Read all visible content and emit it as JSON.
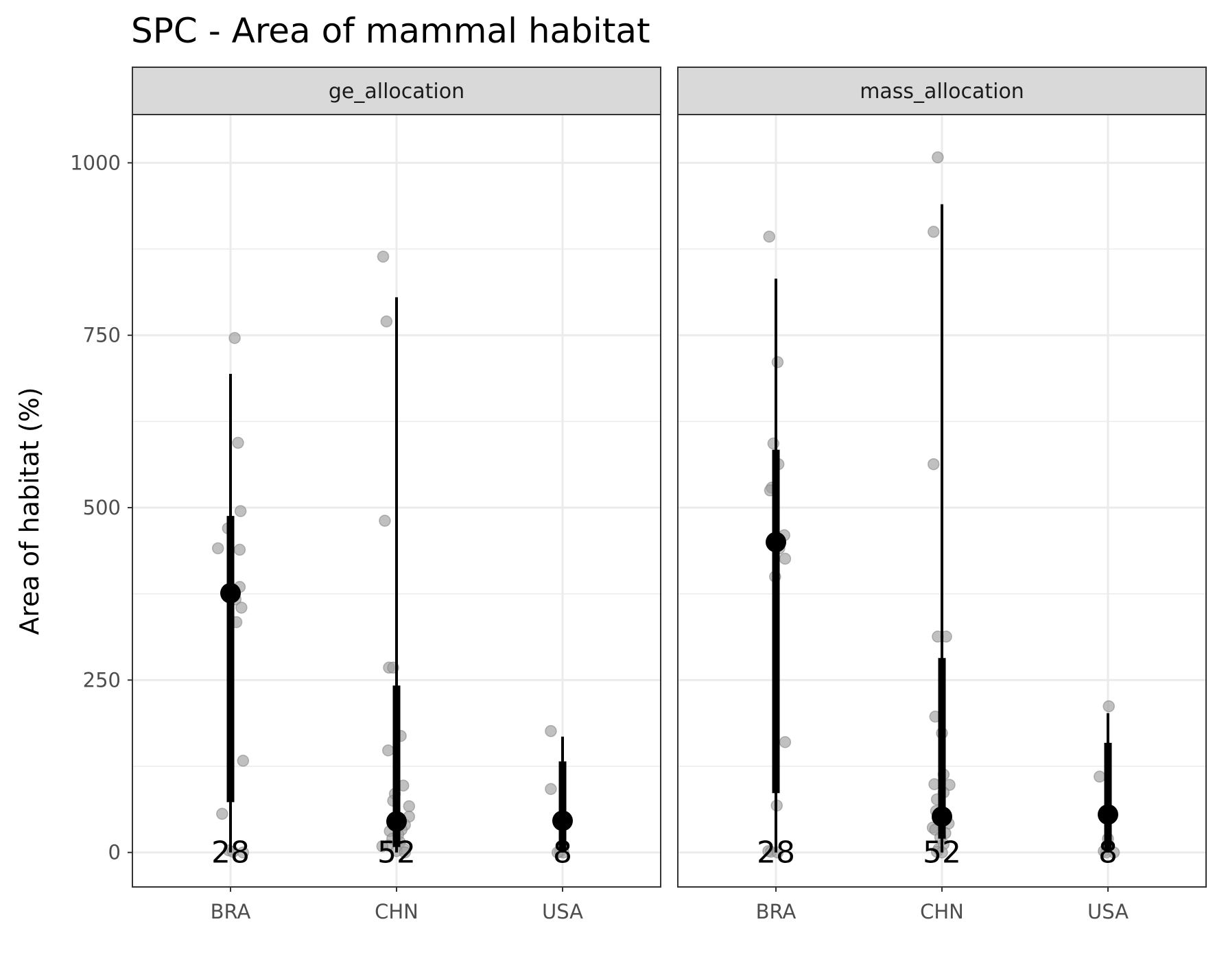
{
  "chart_data": {
    "type": "scatter",
    "title": "SPC - Area of mammal habitat",
    "xlabel": "",
    "ylabel": "Area of habitat (%)",
    "ylim": [
      -50,
      1070
    ],
    "yticks": [
      0,
      250,
      500,
      750,
      1000
    ],
    "categories": [
      "BRA",
      "CHN",
      "USA"
    ],
    "grid": true,
    "legend": "none",
    "colors": {
      "points": "#9e9e9e",
      "summary": "#000000",
      "grid": "#ebebeb",
      "strip_fill": "#d9d9d9",
      "panel_border": "#333333"
    },
    "panels": [
      {
        "name": "ge_allocation",
        "groups": [
          {
            "category": "BRA",
            "count_label": "28",
            "median": 376,
            "interval_66": [
              73,
              488
            ],
            "interval_95": [
              0,
              694
            ],
            "points": [
              {
                "dx": 0.05,
                "y": 746
              },
              {
                "dx": 0.09,
                "y": 594
              },
              {
                "dx": 0.12,
                "y": 495
              },
              {
                "dx": -0.03,
                "y": 470
              },
              {
                "dx": -0.15,
                "y": 441
              },
              {
                "dx": 0.11,
                "y": 439
              },
              {
                "dx": 0.11,
                "y": 385
              },
              {
                "dx": -0.01,
                "y": 376
              },
              {
                "dx": 0.06,
                "y": 367
              },
              {
                "dx": 0.13,
                "y": 355
              },
              {
                "dx": 0.07,
                "y": 334
              },
              {
                "dx": 0.15,
                "y": 133
              },
              {
                "dx": -0.1,
                "y": 56
              },
              {
                "dx": -0.02,
                "y": 3
              },
              {
                "dx": 0.15,
                "y": 0
              },
              {
                "dx": 0.03,
                "y": 1
              }
            ]
          },
          {
            "category": "CHN",
            "count_label": "52",
            "median": 45,
            "interval_66": [
              8,
              242
            ],
            "interval_95": [
              0,
              805
            ],
            "points": [
              {
                "dx": -0.16,
                "y": 864
              },
              {
                "dx": -0.12,
                "y": 770
              },
              {
                "dx": -0.14,
                "y": 481
              },
              {
                "dx": -0.09,
                "y": 268
              },
              {
                "dx": -0.04,
                "y": 268
              },
              {
                "dx": 0.05,
                "y": 169
              },
              {
                "dx": -0.1,
                "y": 148
              },
              {
                "dx": 0.08,
                "y": 97
              },
              {
                "dx": -0.02,
                "y": 85
              },
              {
                "dx": -0.04,
                "y": 75
              },
              {
                "dx": 0.15,
                "y": 67
              },
              {
                "dx": 0.15,
                "y": 52
              },
              {
                "dx": -0.02,
                "y": 45
              },
              {
                "dx": 0.1,
                "y": 40
              },
              {
                "dx": 0.06,
                "y": 33
              },
              {
                "dx": -0.08,
                "y": 31
              },
              {
                "dx": 0.02,
                "y": 26
              },
              {
                "dx": -0.05,
                "y": 20
              },
              {
                "dx": 0.04,
                "y": 15
              },
              {
                "dx": -0.1,
                "y": 10
              },
              {
                "dx": -0.17,
                "y": 9
              },
              {
                "dx": 0.09,
                "y": 5
              },
              {
                "dx": 0.0,
                "y": 2
              },
              {
                "dx": 0.1,
                "y": 0
              }
            ]
          },
          {
            "category": "USA",
            "count_label": "8",
            "median": 46,
            "interval_66": [
              0,
              132
            ],
            "interval_95": [
              0,
              168
            ],
            "points": [
              {
                "dx": -0.14,
                "y": 176
              },
              {
                "dx": -0.14,
                "y": 92
              },
              {
                "dx": -0.03,
                "y": 46
              },
              {
                "dx": -0.03,
                "y": 1
              },
              {
                "dx": 0.01,
                "y": 0
              },
              {
                "dx": -0.06,
                "y": 0
              }
            ]
          }
        ]
      },
      {
        "name": "mass_allocation",
        "groups": [
          {
            "category": "BRA",
            "count_label": "28",
            "median": 450,
            "interval_66": [
              86,
              584
            ],
            "interval_95": [
              0,
              832
            ],
            "points": [
              {
                "dx": -0.08,
                "y": 893
              },
              {
                "dx": 0.02,
                "y": 711
              },
              {
                "dx": -0.03,
                "y": 593
              },
              {
                "dx": 0.03,
                "y": 563
              },
              {
                "dx": -0.05,
                "y": 529
              },
              {
                "dx": -0.07,
                "y": 525
              },
              {
                "dx": 0.1,
                "y": 460
              },
              {
                "dx": 0.0,
                "y": 450
              },
              {
                "dx": 0.04,
                "y": 441
              },
              {
                "dx": 0.11,
                "y": 426
              },
              {
                "dx": -0.01,
                "y": 400
              },
              {
                "dx": 0.11,
                "y": 160
              },
              {
                "dx": 0.01,
                "y": 68
              },
              {
                "dx": -0.09,
                "y": 2
              },
              {
                "dx": -0.06,
                "y": 1
              },
              {
                "dx": 0.02,
                "y": 0
              }
            ]
          },
          {
            "category": "CHN",
            "count_label": "52",
            "median": 52,
            "interval_66": [
              20,
              282
            ],
            "interval_95": [
              0,
              940
            ],
            "points": [
              {
                "dx": -0.05,
                "y": 1008
              },
              {
                "dx": -0.1,
                "y": 900
              },
              {
                "dx": -0.1,
                "y": 563
              },
              {
                "dx": 0.05,
                "y": 313
              },
              {
                "dx": -0.05,
                "y": 313
              },
              {
                "dx": -0.08,
                "y": 197
              },
              {
                "dx": 0.0,
                "y": 173
              },
              {
                "dx": 0.02,
                "y": 113
              },
              {
                "dx": -0.09,
                "y": 99
              },
              {
                "dx": 0.09,
                "y": 98
              },
              {
                "dx": 0.02,
                "y": 87
              },
              {
                "dx": -0.06,
                "y": 77
              },
              {
                "dx": -0.07,
                "y": 60
              },
              {
                "dx": -0.03,
                "y": 55
              },
              {
                "dx": 0.0,
                "y": 52
              },
              {
                "dx": 0.08,
                "y": 42
              },
              {
                "dx": -0.11,
                "y": 36
              },
              {
                "dx": -0.08,
                "y": 33
              },
              {
                "dx": 0.04,
                "y": 28
              },
              {
                "dx": -0.02,
                "y": 22
              },
              {
                "dx": 0.02,
                "y": 12
              },
              {
                "dx": -0.04,
                "y": 5
              },
              {
                "dx": -0.06,
                "y": 1
              },
              {
                "dx": 0.0,
                "y": 0
              }
            ]
          },
          {
            "category": "USA",
            "count_label": "8",
            "median": 55,
            "interval_66": [
              0,
              159
            ],
            "interval_95": [
              0,
              202
            ],
            "points": [
              {
                "dx": 0.01,
                "y": 212
              },
              {
                "dx": -0.1,
                "y": 110
              },
              {
                "dx": 0.0,
                "y": 55
              },
              {
                "dx": 0.0,
                "y": 20
              },
              {
                "dx": -0.05,
                "y": 2
              },
              {
                "dx": 0.07,
                "y": 0
              },
              {
                "dx": -0.02,
                "y": 0
              }
            ]
          }
        ]
      }
    ]
  }
}
